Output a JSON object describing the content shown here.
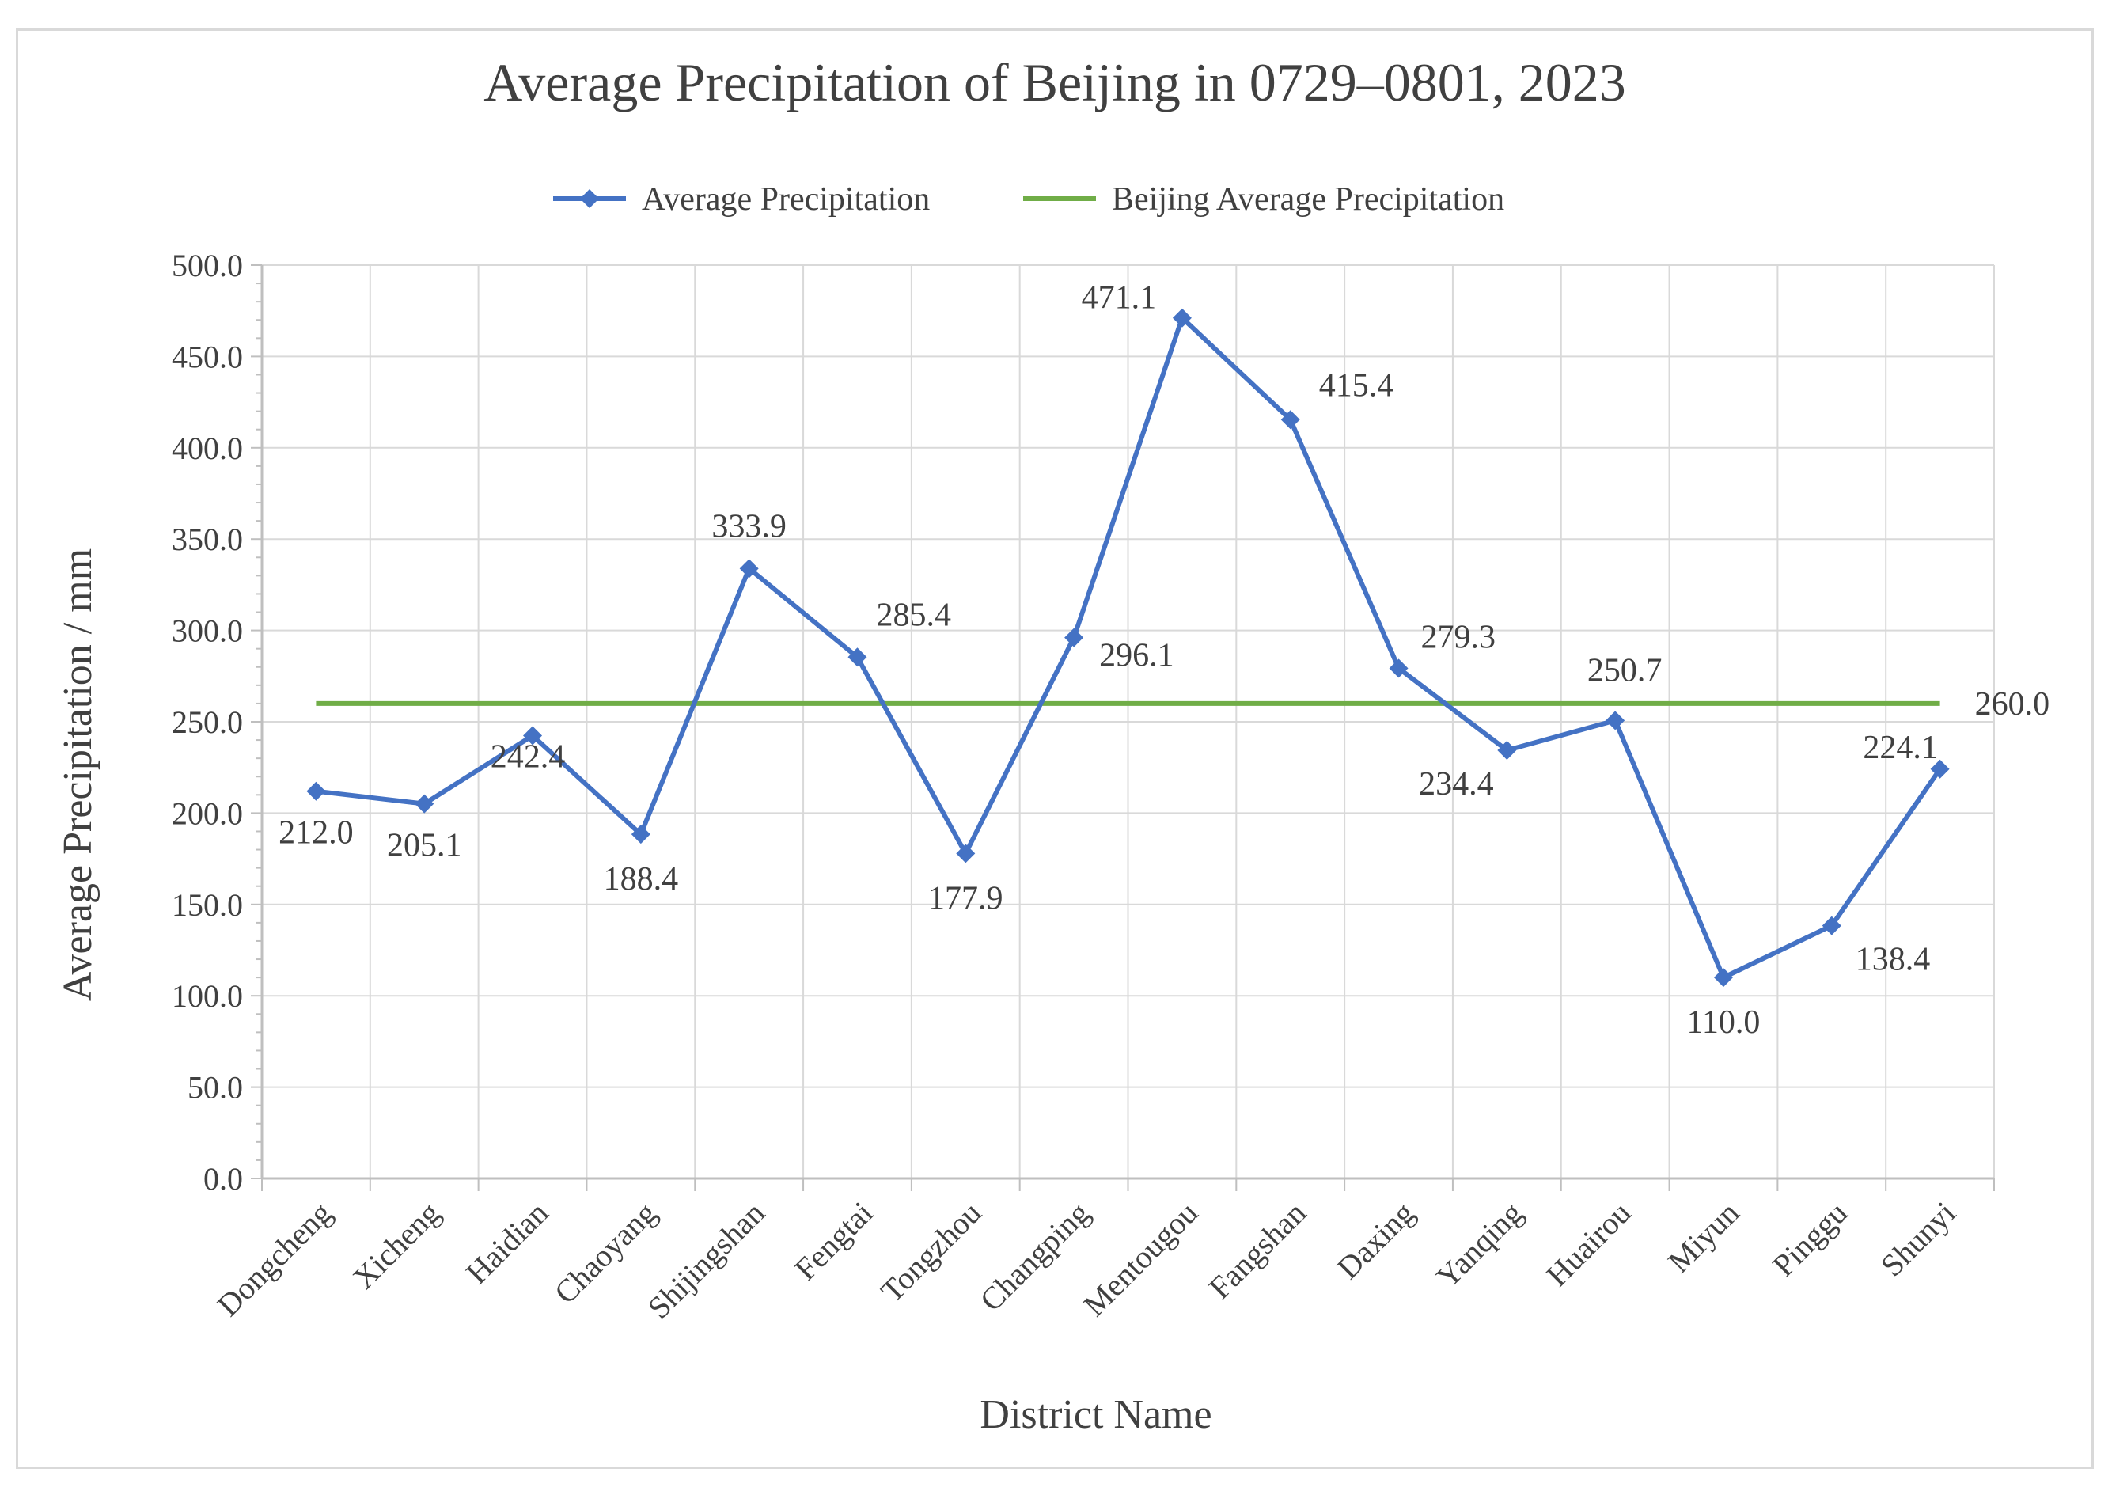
{
  "chart_data": {
    "type": "line",
    "title": "Average Precipitation of  Beijing in 0729–0801, 2023",
    "xlabel": "District Name",
    "ylabel": "Average Precipitation / mm",
    "ylim": [
      0,
      500
    ],
    "ytick_step": 50,
    "ytick_labels": [
      "0.0",
      "50.0",
      "100.0",
      "150.0",
      "200.0",
      "250.0",
      "300.0",
      "350.0",
      "400.0",
      "450.0",
      "500.0"
    ],
    "grid": true,
    "legend_position": "top-center",
    "categories": [
      "Dongcheng",
      "Xicheng",
      "Haidian",
      "Chaoyang",
      "Shijingshan",
      "Fengtai",
      "Tongzhou",
      "Changping",
      "Mentougou",
      "Fangshan",
      "Daxing",
      "Yanqing",
      "Huairou",
      "Miyun",
      "Pinggu",
      "Shunyi"
    ],
    "series": [
      {
        "name": "Average Precipitation",
        "color": "#4472c4",
        "marker": "diamond",
        "values": [
          212.0,
          205.1,
          242.4,
          188.4,
          333.9,
          285.4,
          177.9,
          296.1,
          471.1,
          415.4,
          279.3,
          234.4,
          250.7,
          110.0,
          138.4,
          224.1
        ],
        "labels": [
          "212.0",
          "205.1",
          "242.4",
          "188.4",
          "333.9",
          "285.4",
          "177.9",
          "296.1",
          "471.1",
          "415.4",
          "279.3",
          "234.4",
          "250.7",
          "110.0",
          "138.4",
          "224.1"
        ],
        "highlight_label_index": 8,
        "highlight_color": "#c00000"
      },
      {
        "name": "Beijing Average Precipitation",
        "color": "#70ad47",
        "marker": "none",
        "value": 260.0,
        "label": "260.0"
      }
    ]
  }
}
